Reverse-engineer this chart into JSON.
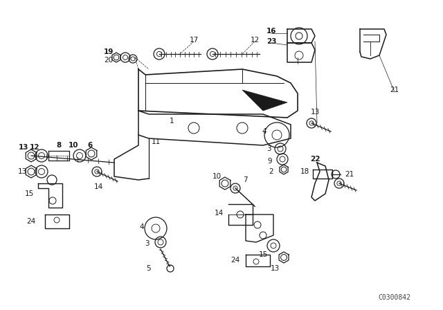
{
  "bg_color": "#ffffff",
  "line_color": "#1a1a1a",
  "fig_width": 6.4,
  "fig_height": 4.48,
  "dpi": 100,
  "watermark": "C0300842",
  "watermark_fontsize": 7
}
